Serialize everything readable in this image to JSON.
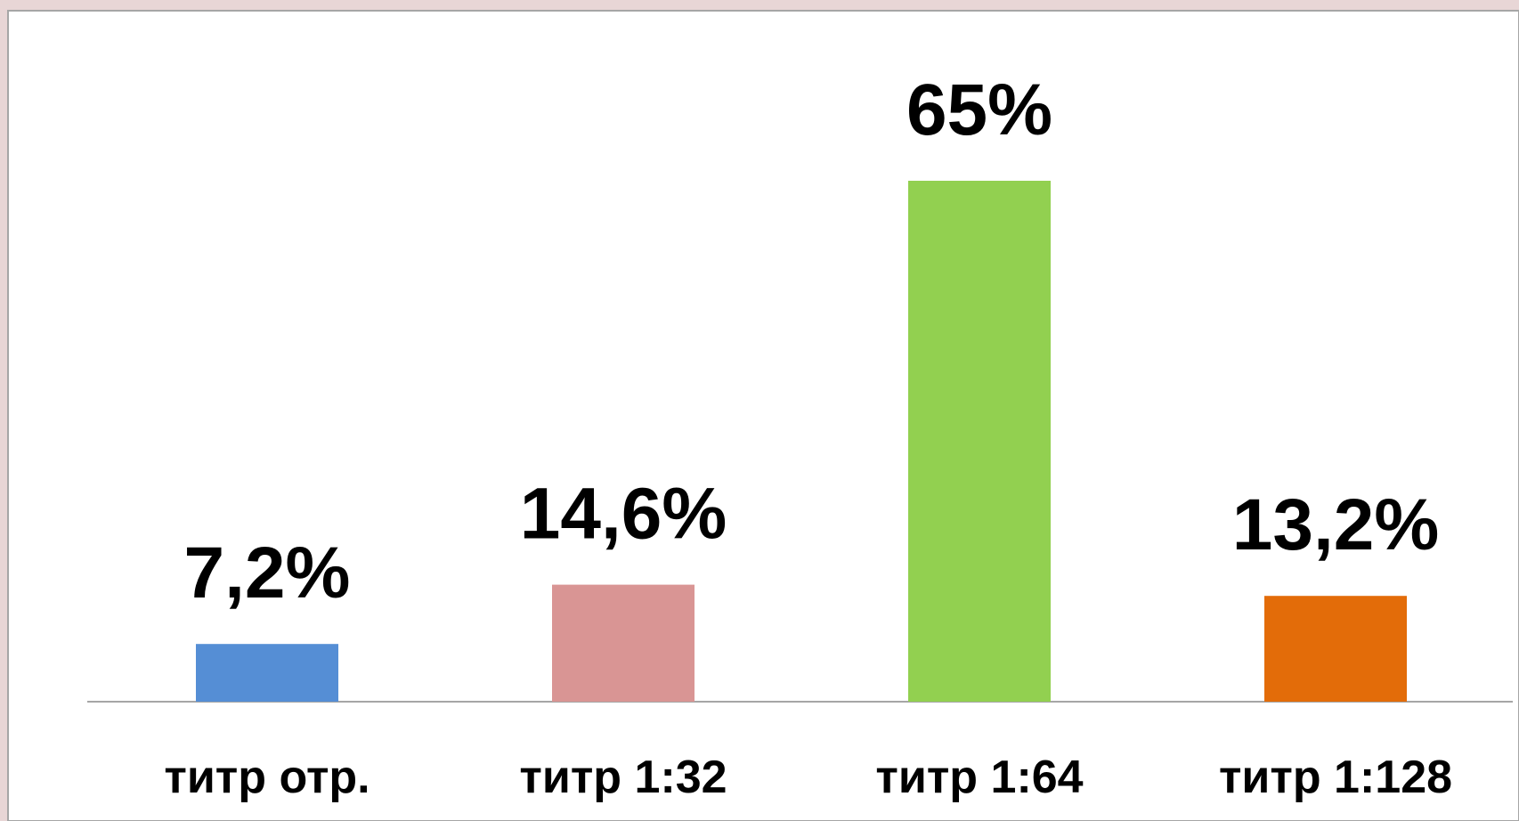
{
  "chart_data": {
    "type": "bar",
    "categories": [
      "титр отр.",
      "титр 1:32",
      "титр 1:64",
      "титр 1:128"
    ],
    "values": [
      7.2,
      14.6,
      65,
      13.2
    ],
    "value_labels": [
      "7,2%",
      "14,6%",
      "65%",
      "13,2%"
    ],
    "colors": [
      "#558ed5",
      "#d99594",
      "#92d050",
      "#e36c09"
    ],
    "grid": false
  }
}
